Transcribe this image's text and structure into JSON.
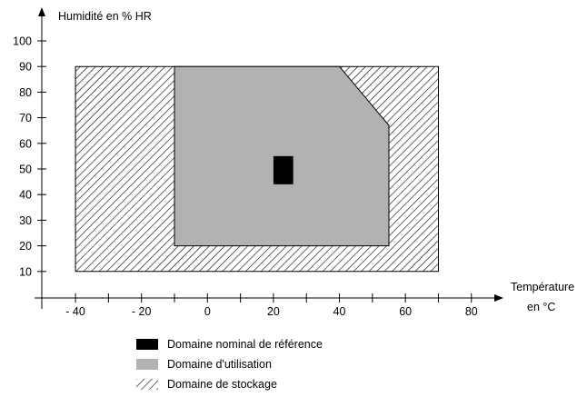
{
  "chart_data": {
    "type": "area",
    "y_axis_title": "Humidité en % HR",
    "x_axis_title_line1": "Température",
    "x_axis_title_line2": "en °C",
    "xlim": [
      -45,
      85
    ],
    "ylim": [
      0,
      105
    ],
    "x_ticks": [
      -40,
      -30,
      -20,
      -10,
      0,
      10,
      20,
      30,
      40,
      50,
      60,
      70,
      80
    ],
    "x_tick_labels": [
      {
        "value": -40,
        "label": "- 40"
      },
      {
        "value": -20,
        "label": "- 20"
      },
      {
        "value": 0,
        "label": "0"
      },
      {
        "value": 20,
        "label": "20"
      },
      {
        "value": 40,
        "label": "40"
      },
      {
        "value": 60,
        "label": "60"
      },
      {
        "value": 80,
        "label": "80"
      }
    ],
    "y_ticks": [
      10,
      20,
      30,
      40,
      50,
      60,
      70,
      80,
      90,
      100
    ],
    "y_tick_labels": [
      "10",
      "20",
      "30",
      "40",
      "50",
      "60",
      "70",
      "80",
      "90",
      "100"
    ],
    "regions": [
      {
        "id": "storage",
        "name": "Domaine de stockage",
        "fill": "hatch",
        "color": "#000000",
        "points": [
          [
            -40,
            10
          ],
          [
            70,
            10
          ],
          [
            70,
            90
          ],
          [
            -40,
            90
          ]
        ]
      },
      {
        "id": "operating",
        "name": "Domaine d'utilisation",
        "fill": "solid",
        "color": "#b2b2b2",
        "points": [
          [
            -10,
            20
          ],
          [
            55,
            20
          ],
          [
            55,
            67
          ],
          [
            40,
            90
          ],
          [
            -10,
            90
          ]
        ]
      },
      {
        "id": "reference",
        "name": "Domaine nominal de référence",
        "fill": "solid",
        "color": "#000000",
        "points": [
          [
            20,
            44
          ],
          [
            26,
            44
          ],
          [
            26,
            55
          ],
          [
            20,
            55
          ]
        ]
      }
    ],
    "legend_order": [
      "reference",
      "operating",
      "storage"
    ]
  }
}
